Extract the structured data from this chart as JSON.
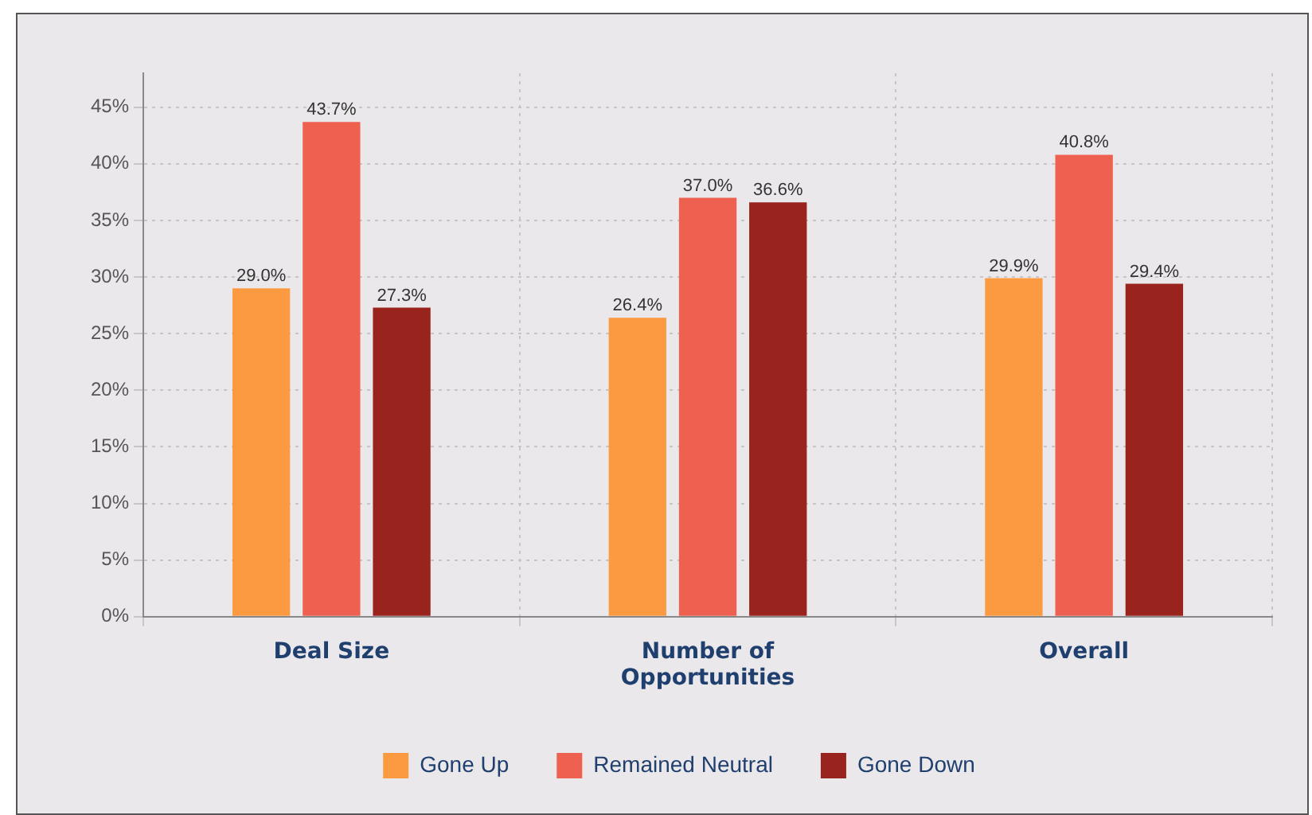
{
  "chart_data": {
    "type": "bar",
    "categories": [
      "Deal Size",
      "Number of Opportunities",
      "Overall"
    ],
    "series": [
      {
        "name": "Gone Up",
        "color": "#fb9a40",
        "values": [
          29.0,
          26.4,
          29.9
        ],
        "value_labels": [
          "29.0%",
          "26.4%",
          "29.9%"
        ]
      },
      {
        "name": "Remained Neutral",
        "color": "#ee6150",
        "values": [
          43.7,
          37.0,
          40.8
        ],
        "value_labels": [
          "43.7%",
          "37.0%",
          "40.8%"
        ]
      },
      {
        "name": "Gone Down",
        "color": "#99241d",
        "values": [
          27.3,
          36.6,
          29.4
        ],
        "value_labels": [
          "27.3%",
          "36.6%",
          "29.4%"
        ]
      }
    ],
    "ylim": [
      0,
      48
    ],
    "yticks": [
      {
        "value": 0,
        "label": "0%"
      },
      {
        "value": 5,
        "label": "5%"
      },
      {
        "value": 10,
        "label": "10%"
      },
      {
        "value": 15,
        "label": "15%"
      },
      {
        "value": 20,
        "label": "20%"
      },
      {
        "value": 25,
        "label": "25%"
      },
      {
        "value": 30,
        "label": "30%"
      },
      {
        "value": 35,
        "label": "35%"
      },
      {
        "value": 40,
        "label": "40%"
      },
      {
        "value": 45,
        "label": "45%"
      }
    ],
    "grid": true,
    "legend": "bottom"
  }
}
